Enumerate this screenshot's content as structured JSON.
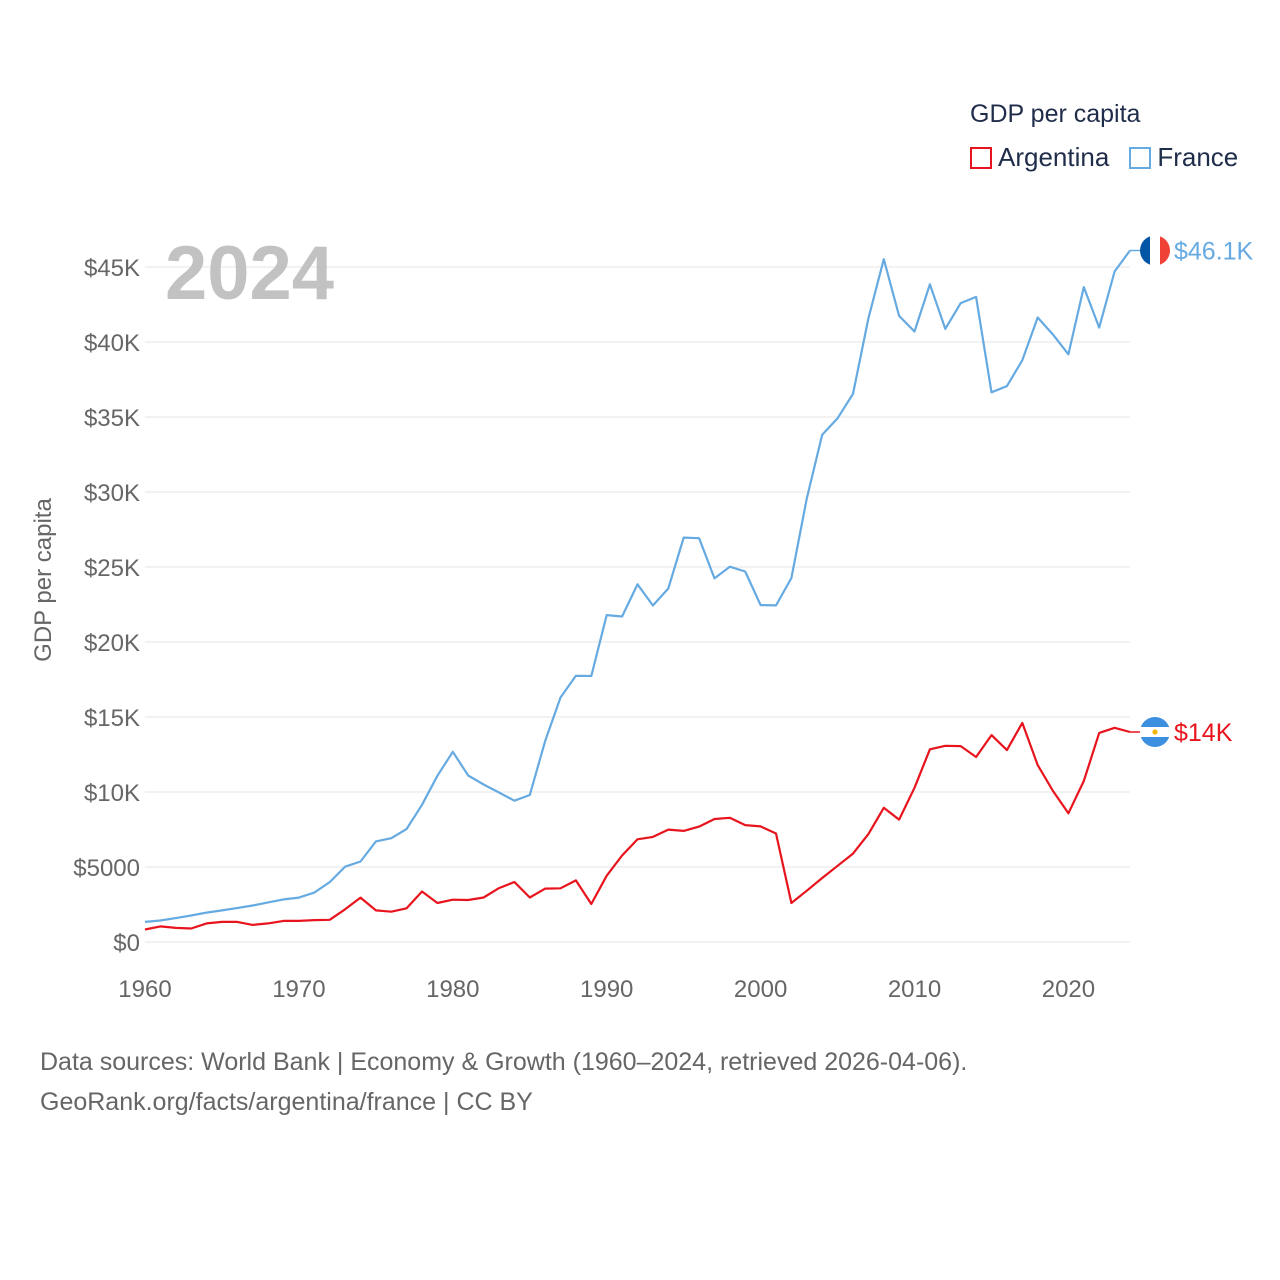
{
  "legend": {
    "title": "GDP per capita",
    "items": [
      {
        "label": "Argentina",
        "color": "#e8141d"
      },
      {
        "label": "France",
        "color": "#66aae2"
      }
    ]
  },
  "footer": {
    "line1": "Data sources: World Bank | Economy & Growth (1960–2024, retrieved 2026-04-06).",
    "line2": "GeoRank.org/facts/argentina/france | CC BY"
  },
  "chart_data": {
    "type": "line",
    "year_label": "2024",
    "ylabel": "GDP per capita",
    "xlim": [
      1960,
      2024
    ],
    "ylim": [
      0,
      45000
    ],
    "x_ticks": [
      1960,
      1970,
      1980,
      1990,
      2000,
      2010,
      2020
    ],
    "y_ticks": [
      {
        "value": 0,
        "label": "$0"
      },
      {
        "value": 5000,
        "label": "$5000"
      },
      {
        "value": 10000,
        "label": "$10K"
      },
      {
        "value": 15000,
        "label": "$15K"
      },
      {
        "value": 20000,
        "label": "$20K"
      },
      {
        "value": 25000,
        "label": "$25K"
      },
      {
        "value": 30000,
        "label": "$30K"
      },
      {
        "value": 35000,
        "label": "$35K"
      },
      {
        "value": 40000,
        "label": "$40K"
      },
      {
        "value": 45000,
        "label": "$45K"
      }
    ],
    "series": [
      {
        "name": "France",
        "color": "#66aae2",
        "end_label": "$46.1K",
        "flag": "france-flag-icon",
        "x": [
          1960,
          1961,
          1962,
          1963,
          1964,
          1965,
          1966,
          1967,
          1968,
          1969,
          1970,
          1971,
          1972,
          1973,
          1974,
          1975,
          1976,
          1977,
          1978,
          1979,
          1980,
          1981,
          1982,
          1983,
          1984,
          1985,
          1986,
          1987,
          1988,
          1989,
          1990,
          1991,
          1992,
          1993,
          1994,
          1995,
          1996,
          1997,
          1998,
          1999,
          2000,
          2001,
          2002,
          2003,
          2004,
          2005,
          2006,
          2007,
          2008,
          2009,
          2010,
          2011,
          2012,
          2013,
          2014,
          2015,
          2016,
          2017,
          2018,
          2019,
          2020,
          2021,
          2022,
          2023,
          2024
        ],
        "values": [
          1340,
          1430,
          1590,
          1770,
          1960,
          2110,
          2270,
          2430,
          2640,
          2840,
          2960,
          3290,
          3990,
          5020,
          5370,
          6710,
          6920,
          7530,
          9150,
          11080,
          12680,
          11100,
          10500,
          9970,
          9420,
          9800,
          13410,
          16300,
          17750,
          17730,
          21790,
          21700,
          23850,
          22430,
          23570,
          26960,
          26920,
          24240,
          25020,
          24700,
          22460,
          22440,
          24270,
          29570,
          33820,
          34920,
          36540,
          41570,
          45520,
          41740,
          40700,
          43850,
          40870,
          42590,
          43010,
          36650,
          37060,
          38780,
          41630,
          40490,
          39180,
          43660,
          40960,
          44700,
          46100
        ]
      },
      {
        "name": "Argentina",
        "color": "#e8141d",
        "end_label": "$14K",
        "flag": "argentina-flag-icon",
        "x": [
          1960,
          1961,
          1962,
          1963,
          1964,
          1965,
          1966,
          1967,
          1968,
          1969,
          1970,
          1971,
          1972,
          1973,
          1974,
          1975,
          1976,
          1977,
          1978,
          1979,
          1980,
          1981,
          1982,
          1983,
          1984,
          1985,
          1986,
          1987,
          1988,
          1989,
          1990,
          1991,
          1992,
          1993,
          1994,
          1995,
          1996,
          1997,
          1998,
          1999,
          2000,
          2001,
          2002,
          2003,
          2004,
          2005,
          2006,
          2007,
          2008,
          2009,
          2010,
          2011,
          2012,
          2013,
          2014,
          2015,
          2016,
          2017,
          2018,
          2019,
          2020,
          2021,
          2022,
          2023,
          2024
        ],
        "values": [
          830,
          1040,
          940,
          900,
          1240,
          1340,
          1340,
          1140,
          1240,
          1410,
          1410,
          1460,
          1480,
          2180,
          2960,
          2110,
          2020,
          2250,
          3370,
          2600,
          2820,
          2800,
          2970,
          3590,
          4000,
          2970,
          3560,
          3580,
          4110,
          2530,
          4420,
          5770,
          6850,
          7010,
          7490,
          7410,
          7690,
          8200,
          8280,
          7790,
          7710,
          7230,
          2600,
          3420,
          4270,
          5080,
          5890,
          7190,
          8950,
          8160,
          10280,
          12850,
          13080,
          13060,
          12330,
          13790,
          12790,
          14610,
          11790,
          10070,
          8580,
          10730,
          13940,
          14280,
          14000
        ]
      }
    ]
  }
}
